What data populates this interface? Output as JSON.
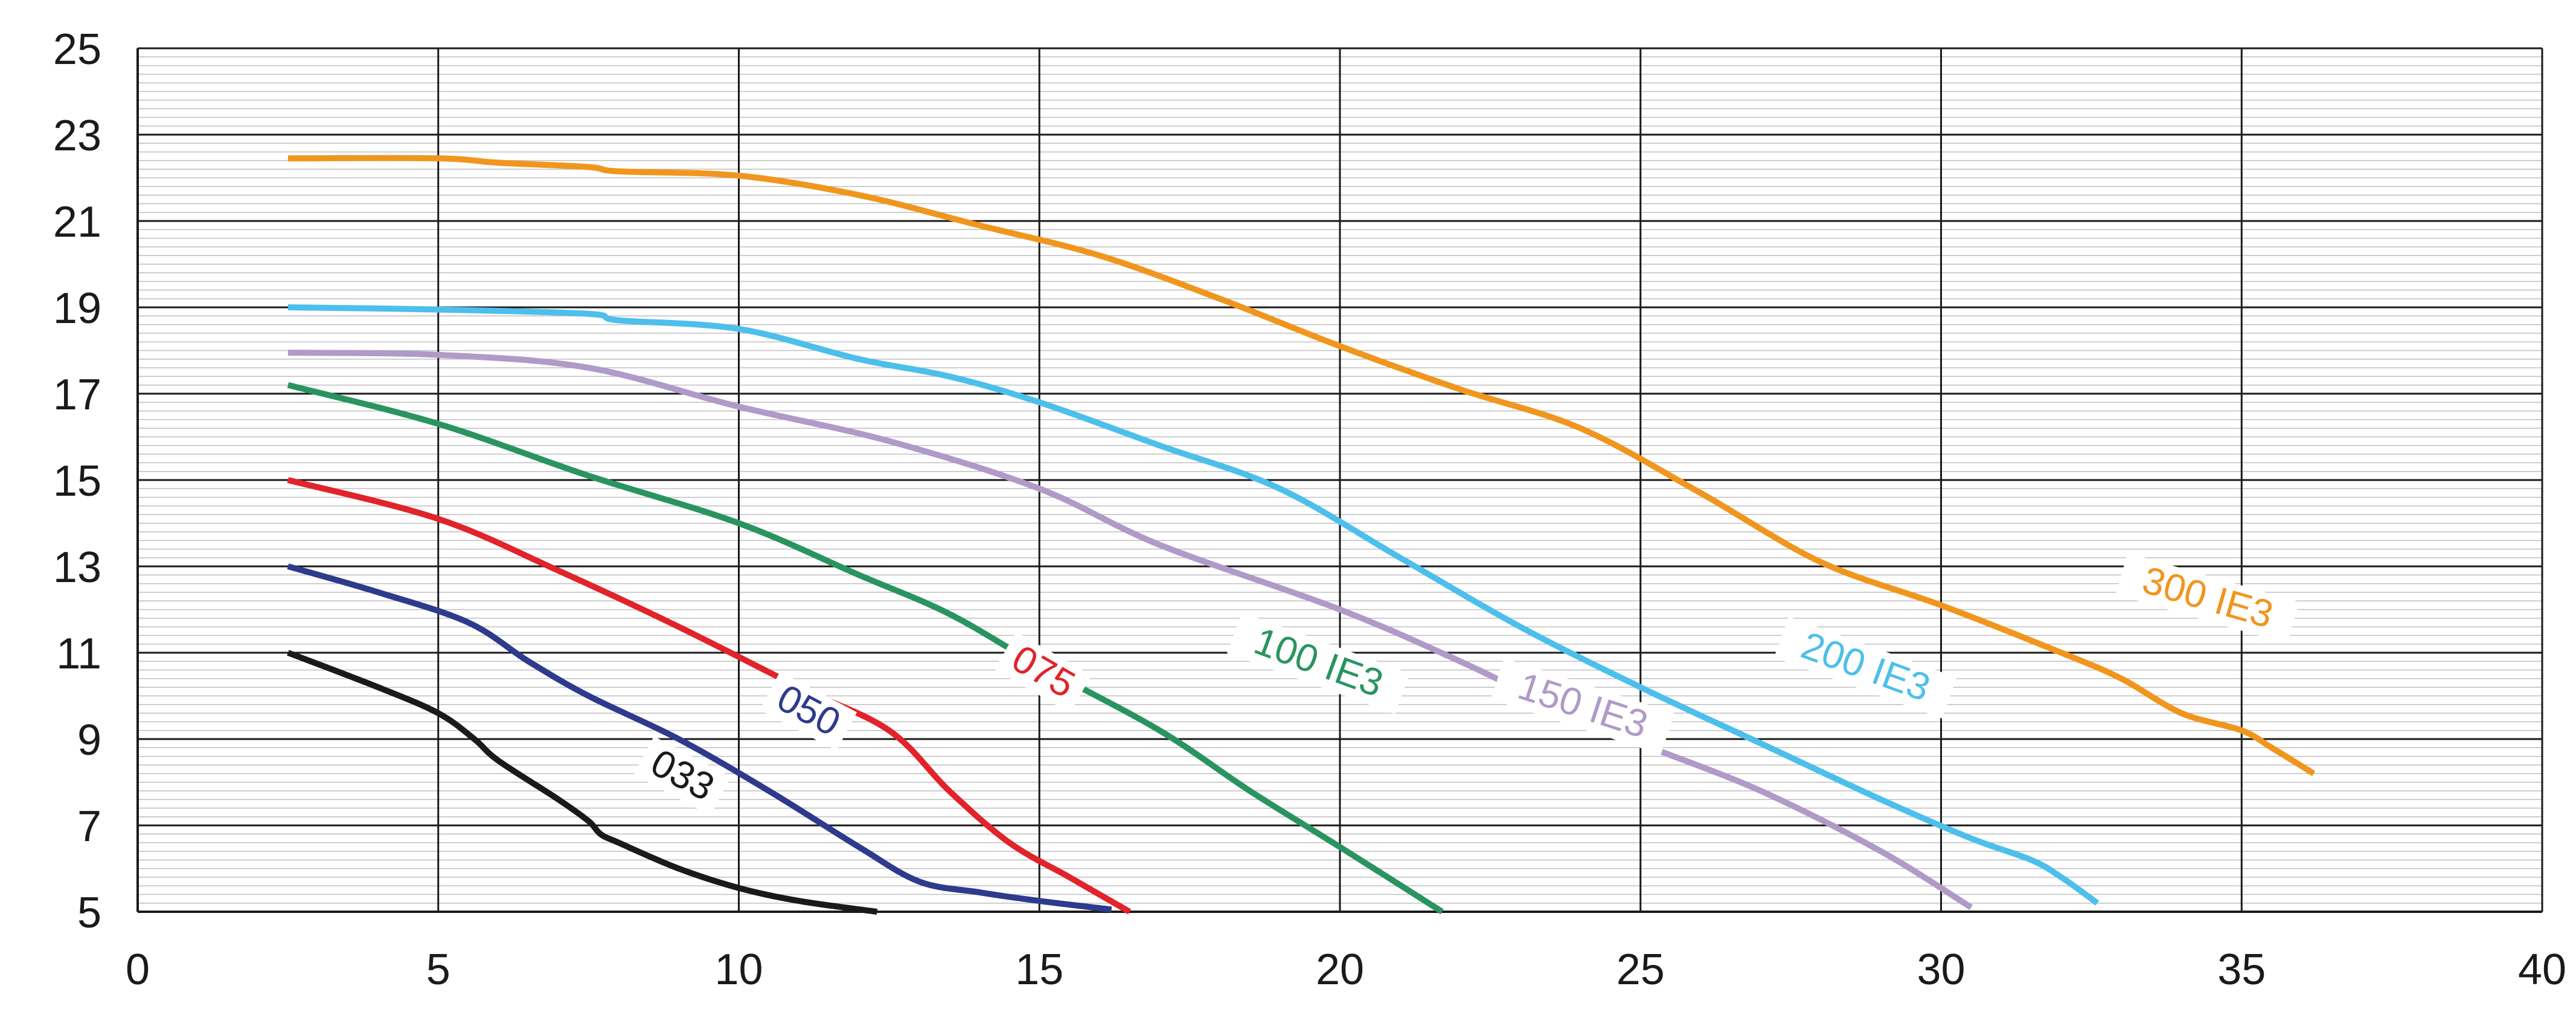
{
  "chart_data": {
    "type": "line",
    "xlim": [
      0,
      40
    ],
    "ylim": [
      5,
      25
    ],
    "x_ticks": [
      "0",
      "5",
      "10",
      "15",
      "20",
      "25",
      "30",
      "35",
      "40"
    ],
    "y_ticks": [
      "5",
      "7",
      "9",
      "11",
      "13",
      "15",
      "17",
      "19",
      "21",
      "23",
      "25"
    ],
    "grid": {
      "major_vertical_every": 5,
      "major_horizontal_every": 2,
      "minor_horizontal_every": 0.2
    },
    "series": [
      {
        "name": "033",
        "color": "#1a1a1a",
        "x": [
          2.5,
          4,
          5,
          5.6,
          6,
          7,
          7.5,
          7.7,
          8,
          9,
          10,
          11,
          12.3
        ],
        "y": [
          11,
          10.2,
          9.6,
          9.0,
          8.5,
          7.6,
          7.1,
          6.8,
          6.6,
          6.0,
          5.55,
          5.25,
          5.0
        ]
      },
      {
        "name": "050",
        "color": "#2e3a8c",
        "x": [
          2.5,
          4,
          5.5,
          6.5,
          7.5,
          9,
          10.5,
          12,
          13,
          14,
          15,
          16.2
        ],
        "y": [
          13,
          12.4,
          11.7,
          10.8,
          10.0,
          9.0,
          7.8,
          6.5,
          5.7,
          5.45,
          5.25,
          5.05
        ]
      },
      {
        "name": "075",
        "color": "#e1232b",
        "x": [
          2.5,
          5,
          7,
          9,
          11,
          12.5,
          13.5,
          14.5,
          15.5,
          16.5
        ],
        "y": [
          15,
          14.1,
          12.9,
          11.6,
          10.2,
          9.2,
          7.8,
          6.6,
          5.8,
          5.0
        ]
      },
      {
        "name": "100 IE3",
        "color": "#2a9460",
        "x": [
          2.5,
          5,
          7.5,
          10,
          12,
          13.5,
          15,
          17,
          18.5,
          20,
          21.7
        ],
        "y": [
          17.2,
          16.3,
          15.1,
          14.0,
          12.8,
          11.9,
          10.7,
          9.2,
          7.8,
          6.5,
          5.0
        ]
      },
      {
        "name": "150 IE3",
        "color": "#b09ac8",
        "x": [
          2.5,
          5,
          7.5,
          10,
          12.5,
          15,
          17,
          20,
          22,
          23.5,
          25,
          27,
          29,
          30.5
        ],
        "y": [
          17.95,
          17.9,
          17.6,
          16.7,
          15.9,
          14.8,
          13.5,
          12.0,
          10.8,
          9.8,
          8.9,
          7.8,
          6.4,
          5.1
        ]
      },
      {
        "name": "200 IE3",
        "color": "#4dbfeb",
        "x": [
          2.5,
          5,
          7.5,
          8,
          10,
          12,
          13.5,
          15,
          17,
          19,
          21,
          23,
          25,
          27,
          29,
          30.5,
          31.5,
          32,
          32.6
        ],
        "y": [
          19,
          18.95,
          18.85,
          18.7,
          18.5,
          17.8,
          17.4,
          16.8,
          15.8,
          14.8,
          13.2,
          11.6,
          10.2,
          8.9,
          7.6,
          6.7,
          6.2,
          5.8,
          5.2
        ]
      },
      {
        "name": "300 IE3",
        "color": "#f0961e",
        "x": [
          2.5,
          5,
          6,
          7.5,
          8,
          10,
          12,
          14,
          16,
          18,
          20,
          22,
          24,
          26,
          28,
          30,
          32,
          33,
          34,
          35,
          35.5,
          36.2
        ],
        "y": [
          22.45,
          22.45,
          22.35,
          22.25,
          22.15,
          22.05,
          21.6,
          20.9,
          20.2,
          19.2,
          18.1,
          17.1,
          16.2,
          14.7,
          13.1,
          12.1,
          11.0,
          10.4,
          9.6,
          9.2,
          8.8,
          8.2
        ]
      }
    ]
  },
  "colors": {
    "background": "#ffffff",
    "major_grid": "#1a1a1a",
    "minor_grid": "#bfbfbf",
    "axis": "#1a1a1a"
  }
}
